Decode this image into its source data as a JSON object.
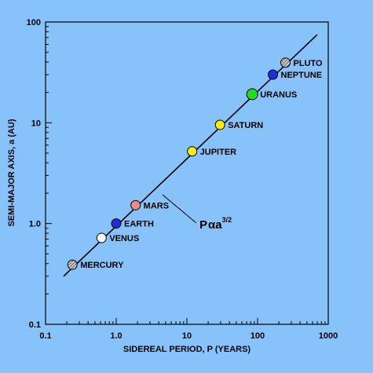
{
  "chart_data": {
    "type": "scatter",
    "title": "",
    "xlabel": "SIDEREAL PERIOD, P (YEARS)",
    "ylabel": "SEMI-MAJOR AXIS, a (AU)",
    "xscale": "log",
    "yscale": "log",
    "xlim": [
      0.1,
      1000
    ],
    "ylim": [
      0.1,
      100
    ],
    "x_ticks": [
      {
        "value": 0.1,
        "label": "0.1"
      },
      {
        "value": 1,
        "label": "1.0"
      },
      {
        "value": 10,
        "label": "10"
      },
      {
        "value": 100,
        "label": "100"
      },
      {
        "value": 1000,
        "label": "1000"
      }
    ],
    "y_ticks": [
      {
        "value": 0.1,
        "label": "0.1"
      },
      {
        "value": 1,
        "label": "1.0"
      },
      {
        "value": 10,
        "label": "10"
      },
      {
        "value": 100,
        "label": "100"
      }
    ],
    "grid": false,
    "points": [
      {
        "label": "MERCURY",
        "x": 0.24,
        "y": 0.39,
        "color": "#9a9a9a",
        "pattern": "hatch"
      },
      {
        "label": "VENUS",
        "x": 0.62,
        "y": 0.72,
        "color": "#ffffff"
      },
      {
        "label": "EARTH",
        "x": 1.0,
        "y": 1.0,
        "color": "#1f2fd6"
      },
      {
        "label": "MARS",
        "x": 1.88,
        "y": 1.52,
        "color": "#f08a8a"
      },
      {
        "label": "JUPITER",
        "x": 11.86,
        "y": 5.2,
        "color": "#ffee00"
      },
      {
        "label": "SATURN",
        "x": 29.46,
        "y": 9.54,
        "color": "#ffee00"
      },
      {
        "label": "URANUS",
        "x": 84.01,
        "y": 19.19,
        "color": "#22dd22"
      },
      {
        "label": "NEPTUNE",
        "x": 164.8,
        "y": 30.06,
        "color": "#1f2fd6"
      },
      {
        "label": "PLUTO",
        "x": 248.1,
        "y": 39.5,
        "color": "#9a9a9a",
        "pattern": "hatch"
      }
    ],
    "fit_line": {
      "x": [
        0.18,
        700
      ],
      "y": [
        0.3,
        75
      ]
    },
    "annotation": {
      "base": "P",
      "symbol": "α",
      "var": "a",
      "exponent": "3/2"
    }
  }
}
